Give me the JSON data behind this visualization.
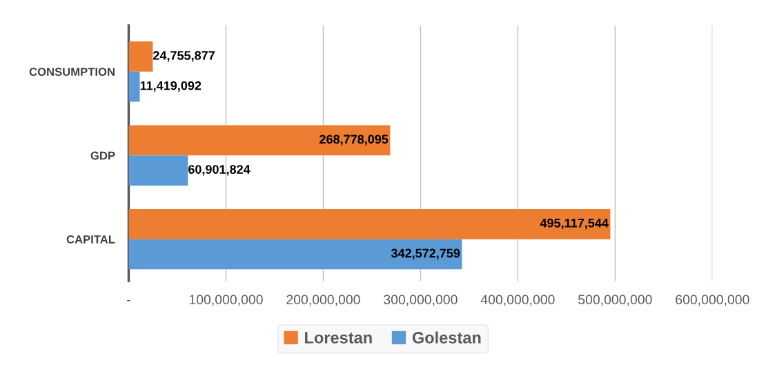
{
  "chart_data": {
    "type": "bar",
    "orientation": "horizontal",
    "categories": [
      "CONSUMPTION",
      "GDP",
      "CAPITAL"
    ],
    "series": [
      {
        "name": "Lorestan",
        "color": "#ed7d31",
        "values": [
          24755877,
          268778095,
          495117544
        ],
        "value_labels": [
          "24,755,877",
          "268,778,095",
          "495,117,544"
        ]
      },
      {
        "name": "Golestan",
        "color": "#5b9bd5",
        "values": [
          11419092,
          60901824,
          342572759
        ],
        "value_labels": [
          "11,419,092",
          "60,901,824",
          "342,572,759"
        ]
      }
    ],
    "xlim": [
      0,
      600000000
    ],
    "xticks": [
      {
        "value": 0,
        "label": "-"
      },
      {
        "value": 100000000,
        "label": "100,000,000"
      },
      {
        "value": 200000000,
        "label": "200,000,000"
      },
      {
        "value": 300000000,
        "label": "300,000,000"
      },
      {
        "value": 400000000,
        "label": "400,000,000"
      },
      {
        "value": 500000000,
        "label": "500,000,000"
      },
      {
        "value": 600000000,
        "label": "600,000,000"
      }
    ],
    "grid": "x",
    "legend": "bottom"
  }
}
